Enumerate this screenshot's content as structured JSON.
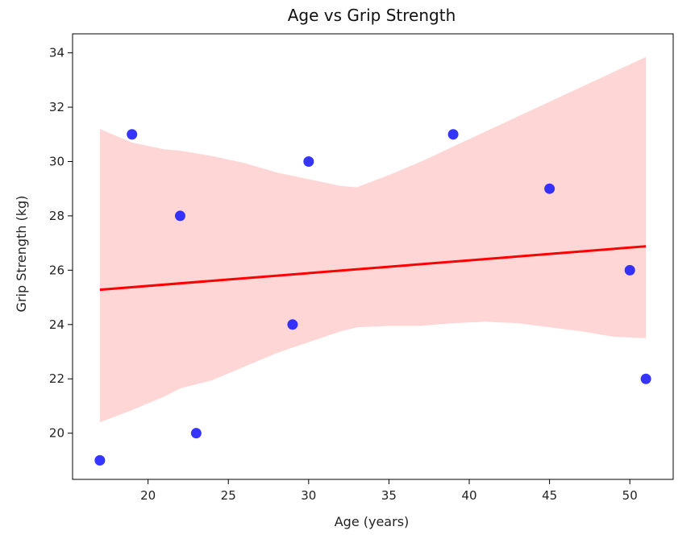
{
  "chart_data": {
    "type": "scatter",
    "title": "Age vs Grip Strength",
    "xlabel": "Age (years)",
    "ylabel": "Grip Strength (kg)",
    "xlim": [
      15.3,
      52.7
    ],
    "ylim": [
      18.3,
      34.7
    ],
    "xticks": [
      20,
      25,
      30,
      35,
      40,
      45,
      50
    ],
    "yticks": [
      20,
      22,
      24,
      26,
      28,
      30,
      32,
      34
    ],
    "grid": false,
    "series": [
      {
        "kind": "scatter",
        "color": "#1f1fff",
        "points": [
          {
            "x": 17,
            "y": 19
          },
          {
            "x": 19,
            "y": 31
          },
          {
            "x": 22,
            "y": 28
          },
          {
            "x": 23,
            "y": 20
          },
          {
            "x": 29,
            "y": 24
          },
          {
            "x": 30,
            "y": 30
          },
          {
            "x": 39,
            "y": 31
          },
          {
            "x": 45,
            "y": 29
          },
          {
            "x": 50,
            "y": 26
          },
          {
            "x": 51,
            "y": 22
          }
        ]
      },
      {
        "kind": "regression-line",
        "color": "#ff0000",
        "points": [
          {
            "x": 17,
            "y": 25.28
          },
          {
            "x": 51,
            "y": 26.88
          }
        ]
      },
      {
        "kind": "confidence-band",
        "color": "#ffd6d6",
        "x": [
          17,
          19,
          21,
          22,
          24,
          26,
          28,
          30,
          32,
          33,
          35,
          37,
          39,
          41,
          43,
          45,
          47,
          49,
          51
        ],
        "upper": [
          31.2,
          30.7,
          30.45,
          30.4,
          30.2,
          29.95,
          29.6,
          29.35,
          29.1,
          29.05,
          29.5,
          30.0,
          30.55,
          31.1,
          31.65,
          32.2,
          32.75,
          33.3,
          33.85
        ],
        "lower": [
          20.4,
          20.85,
          21.35,
          21.65,
          21.95,
          22.45,
          22.95,
          23.35,
          23.75,
          23.9,
          23.95,
          23.95,
          24.05,
          24.1,
          24.05,
          23.9,
          23.75,
          23.55,
          23.5
        ]
      }
    ]
  }
}
